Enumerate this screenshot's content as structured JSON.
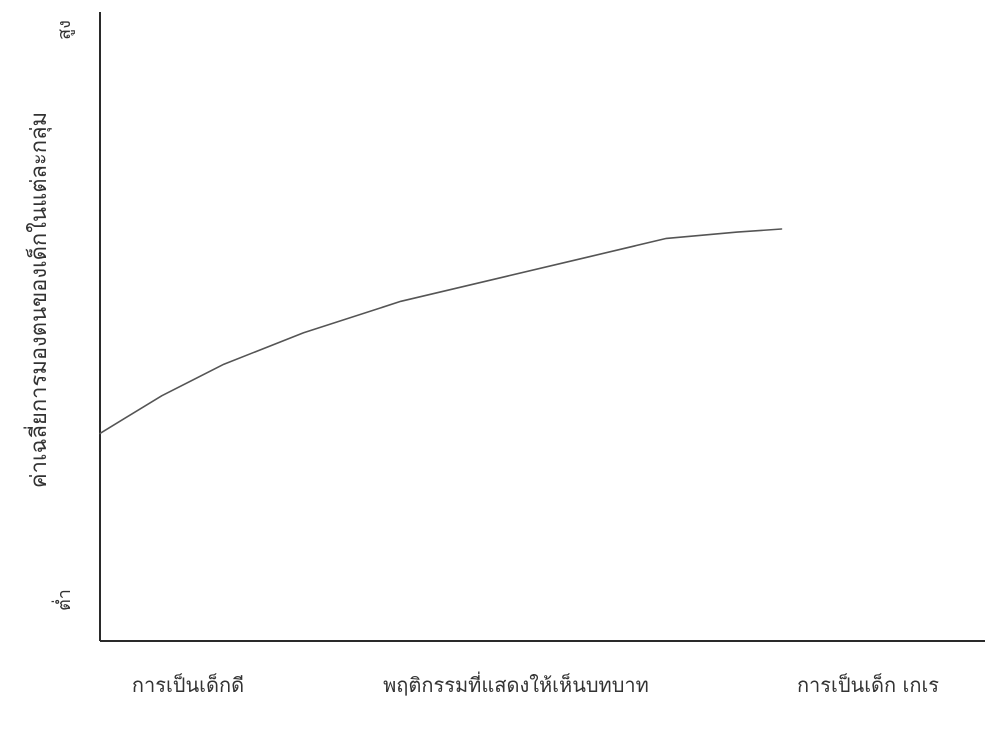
{
  "chart_data": {
    "type": "line",
    "title": "",
    "xlabel": "",
    "ylabel": "ค่าเฉลี่ยการมองตนของเด็กในแต่ละกลุ่ม",
    "y_high_label": "สูง",
    "y_low_label": "ต่ำ",
    "x_categories": [
      "การเป็นเด็กดี",
      "พฤติกรรมที่แสดงให้เห็นบทบาท",
      "การเป็นเด็ก เกเร"
    ],
    "xlim": [
      0,
      1
    ],
    "ylim": [
      0,
      1
    ],
    "grid": false,
    "legend": "none",
    "series": [
      {
        "x": [
          0.0,
          0.07,
          0.14,
          0.23,
          0.34,
          0.46,
          0.55,
          0.64,
          0.72,
          0.77
        ],
        "y": [
          0.33,
          0.39,
          0.44,
          0.49,
          0.54,
          0.58,
          0.61,
          0.64,
          0.65,
          0.655
        ]
      }
    ],
    "colors": {
      "axis": "#2a2a2a",
      "line": "#555555",
      "text": "#333333"
    }
  }
}
